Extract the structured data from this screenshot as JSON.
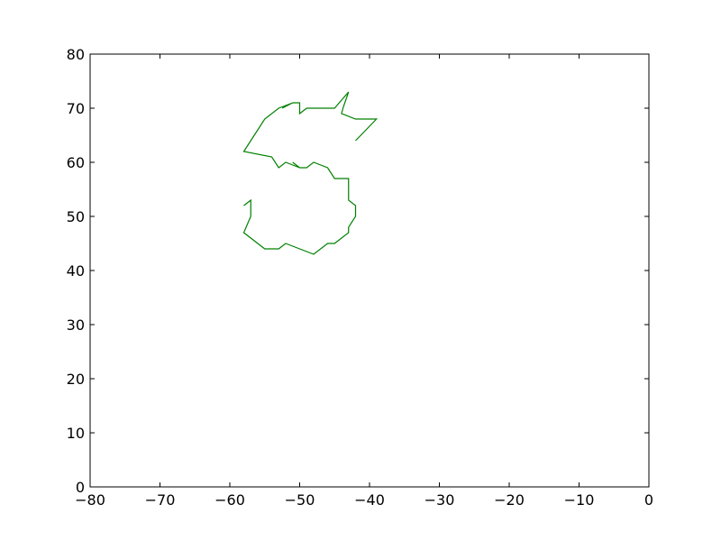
{
  "chart_data": {
    "type": "line",
    "title": "",
    "xlabel": "",
    "ylabel": "",
    "xlim": [
      -80,
      0
    ],
    "ylim": [
      0,
      80
    ],
    "xticks": [
      -80,
      -70,
      -60,
      -50,
      -40,
      -30,
      -20,
      -10,
      0
    ],
    "yticks": [
      0,
      10,
      20,
      30,
      40,
      50,
      60,
      70,
      80
    ],
    "xtick_labels": [
      "−80",
      "−70",
      "−60",
      "−50",
      "−40",
      "−30",
      "−20",
      "−10",
      "0"
    ],
    "ytick_labels": [
      "0",
      "10",
      "20",
      "30",
      "40",
      "50",
      "60",
      "70",
      "80"
    ],
    "grid": false,
    "series": [
      {
        "color": "#008000",
        "points": [
          [
            -42,
            64
          ],
          [
            -39,
            68
          ],
          [
            -42,
            68
          ],
          [
            -44,
            69
          ],
          [
            -43.8,
            70
          ],
          [
            -43,
            73
          ],
          [
            -45,
            70
          ],
          [
            -49,
            70
          ],
          [
            -50,
            69
          ],
          [
            -50,
            71
          ],
          [
            -51,
            71
          ],
          [
            -52.5,
            70
          ],
          [
            -51,
            71
          ],
          [
            -53,
            70
          ],
          [
            -55,
            68
          ],
          [
            -58,
            62
          ],
          [
            -54,
            61
          ],
          [
            -53,
            59
          ],
          [
            -52,
            60
          ],
          [
            -50,
            59
          ],
          [
            -51,
            60
          ],
          [
            -50,
            59
          ],
          [
            -49,
            59
          ],
          [
            -48,
            60
          ],
          [
            -46,
            59
          ],
          [
            -45,
            57
          ],
          [
            -43,
            57
          ],
          [
            -43,
            53
          ],
          [
            -42,
            52
          ],
          [
            -42,
            50
          ],
          [
            -43,
            48
          ],
          [
            -43,
            47
          ],
          [
            -44,
            46
          ],
          [
            -45,
            45
          ],
          [
            -46,
            45
          ],
          [
            -48,
            43
          ],
          [
            -52,
            45
          ],
          [
            -53,
            44
          ],
          [
            -55,
            44
          ],
          [
            -58,
            47
          ],
          [
            -57,
            50
          ],
          [
            -57,
            53
          ],
          [
            -58,
            52
          ]
        ]
      }
    ]
  }
}
